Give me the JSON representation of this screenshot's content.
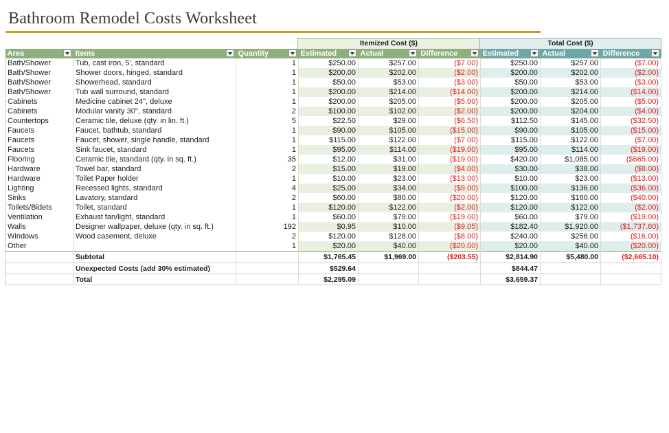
{
  "title": "Bathroom Remodel Costs Worksheet",
  "group_headers": {
    "itemized": "Itemized Cost ($)",
    "total": "Total Cost ($)"
  },
  "columns": {
    "area": "Area",
    "items": "Items",
    "quantity": "Quantity",
    "it_estimated": "Estimated",
    "it_actual": "Actual",
    "it_difference": "Difference",
    "tot_estimated": "Estimated",
    "tot_actual": "Actual",
    "tot_difference": "Difference"
  },
  "rows": [
    {
      "area": "Bath/Shower",
      "item": "Tub, cast iron, 5', standard",
      "qty": "1",
      "ie": "$250.00",
      "ia": "$257.00",
      "id": "($7.00)",
      "te": "$250.00",
      "ta": "$257.00",
      "td": "($7.00)"
    },
    {
      "area": "Bath/Shower",
      "item": "Shower doors, hinged, standard",
      "qty": "1",
      "ie": "$200.00",
      "ia": "$202.00",
      "id": "($2.00)",
      "te": "$200.00",
      "ta": "$202.00",
      "td": "($2.00)"
    },
    {
      "area": "Bath/Shower",
      "item": "Showerhead, standard",
      "qty": "1",
      "ie": "$50.00",
      "ia": "$53.00",
      "id": "($3.00)",
      "te": "$50.00",
      "ta": "$53.00",
      "td": "($3.00)"
    },
    {
      "area": "Bath/Shower",
      "item": "Tub wall surround, standard",
      "qty": "1",
      "ie": "$200.00",
      "ia": "$214.00",
      "id": "($14.00)",
      "te": "$200.00",
      "ta": "$214.00",
      "td": "($14.00)"
    },
    {
      "area": "Cabinets",
      "item": "Medicine cabinet 24'', deluxe",
      "qty": "1",
      "ie": "$200.00",
      "ia": "$205.00",
      "id": "($5.00)",
      "te": "$200.00",
      "ta": "$205.00",
      "td": "($5.00)"
    },
    {
      "area": "Cabinets",
      "item": "Modular vanity 30'', standard",
      "qty": "2",
      "ie": "$100.00",
      "ia": "$102.00",
      "id": "($2.00)",
      "te": "$200.00",
      "ta": "$204.00",
      "td": "($4.00)"
    },
    {
      "area": "Countertops",
      "item": "Ceramic tile, deluxe (qty. in lin. ft.)",
      "qty": "5",
      "ie": "$22.50",
      "ia": "$29.00",
      "id": "($6.50)",
      "te": "$112.50",
      "ta": "$145.00",
      "td": "($32.50)"
    },
    {
      "area": "Faucets",
      "item": "Faucet, bathtub, standard",
      "qty": "1",
      "ie": "$90.00",
      "ia": "$105.00",
      "id": "($15.00)",
      "te": "$90.00",
      "ta": "$105.00",
      "td": "($15.00)"
    },
    {
      "area": "Faucets",
      "item": "Faucet, shower, single handle, standard",
      "qty": "1",
      "ie": "$115.00",
      "ia": "$122.00",
      "id": "($7.00)",
      "te": "$115.00",
      "ta": "$122.00",
      "td": "($7.00)"
    },
    {
      "area": "Faucets",
      "item": "Sink faucet, standard",
      "qty": "1",
      "ie": "$95.00",
      "ia": "$114.00",
      "id": "($19.00)",
      "te": "$95.00",
      "ta": "$114.00",
      "td": "($19.00)"
    },
    {
      "area": "Flooring",
      "item": "Ceramic tile, standard (qty. in sq. ft.)",
      "qty": "35",
      "ie": "$12.00",
      "ia": "$31.00",
      "id": "($19.00)",
      "te": "$420.00",
      "ta": "$1,085.00",
      "td": "($665.00)"
    },
    {
      "area": "Hardware",
      "item": "Towel bar, standard",
      "qty": "2",
      "ie": "$15.00",
      "ia": "$19.00",
      "id": "($4.00)",
      "te": "$30.00",
      "ta": "$38.00",
      "td": "($8.00)"
    },
    {
      "area": "Hardware",
      "item": "Toilet Paper holder",
      "qty": "1",
      "ie": "$10.00",
      "ia": "$23.00",
      "id": "($13.00)",
      "te": "$10.00",
      "ta": "$23.00",
      "td": "($13.00)"
    },
    {
      "area": "Lighting",
      "item": "Recessed lights, standard",
      "qty": "4",
      "ie": "$25.00",
      "ia": "$34.00",
      "id": "($9.00)",
      "te": "$100.00",
      "ta": "$136.00",
      "td": "($36.00)"
    },
    {
      "area": "Sinks",
      "item": "Lavatory, standard",
      "qty": "2",
      "ie": "$60.00",
      "ia": "$80.00",
      "id": "($20.00)",
      "te": "$120.00",
      "ta": "$160.00",
      "td": "($40.00)"
    },
    {
      "area": "Toilets/Bidets",
      "item": "Toilet, standard",
      "qty": "1",
      "ie": "$120.00",
      "ia": "$122.00",
      "id": "($2.00)",
      "te": "$120.00",
      "ta": "$122.00",
      "td": "($2.00)"
    },
    {
      "area": "Ventilation",
      "item": "Exhaust fan/light, standard",
      "qty": "1",
      "ie": "$60.00",
      "ia": "$79.00",
      "id": "($19.00)",
      "te": "$60.00",
      "ta": "$79.00",
      "td": "($19.00)"
    },
    {
      "area": "Walls",
      "item": "Designer wallpaper, deluxe (qty. in sq. ft.)",
      "qty": "192",
      "ie": "$0.95",
      "ia": "$10.00",
      "id": "($9.05)",
      "te": "$182.40",
      "ta": "$1,920.00",
      "td": "($1,737.60)"
    },
    {
      "area": "Windows",
      "item": "Wood casement, deluxe",
      "qty": "2",
      "ie": "$120.00",
      "ia": "$128.00",
      "id": "($8.00)",
      "te": "$240.00",
      "ta": "$256.00",
      "td": "($16.00)"
    },
    {
      "area": "Other",
      "item": "",
      "qty": "1",
      "ie": "$20.00",
      "ia": "$40.00",
      "id": "($20.00)",
      "te": "$20.00",
      "ta": "$40.00",
      "td": "($20.00)"
    }
  ],
  "subtotal": {
    "label": "Subtotal",
    "ie": "$1,765.45",
    "ia": "$1,969.00",
    "id": "($203.55)",
    "te": "$2,814.90",
    "ta": "$5,480.00",
    "td": "($2,665.10)"
  },
  "unexpected": {
    "label": "Unexpected Costs (add 30% estimated)",
    "ie": "$529.64",
    "te": "$844.47"
  },
  "total": {
    "label": "Total",
    "ie": "$2,295.09",
    "te": "$3,659.37"
  }
}
